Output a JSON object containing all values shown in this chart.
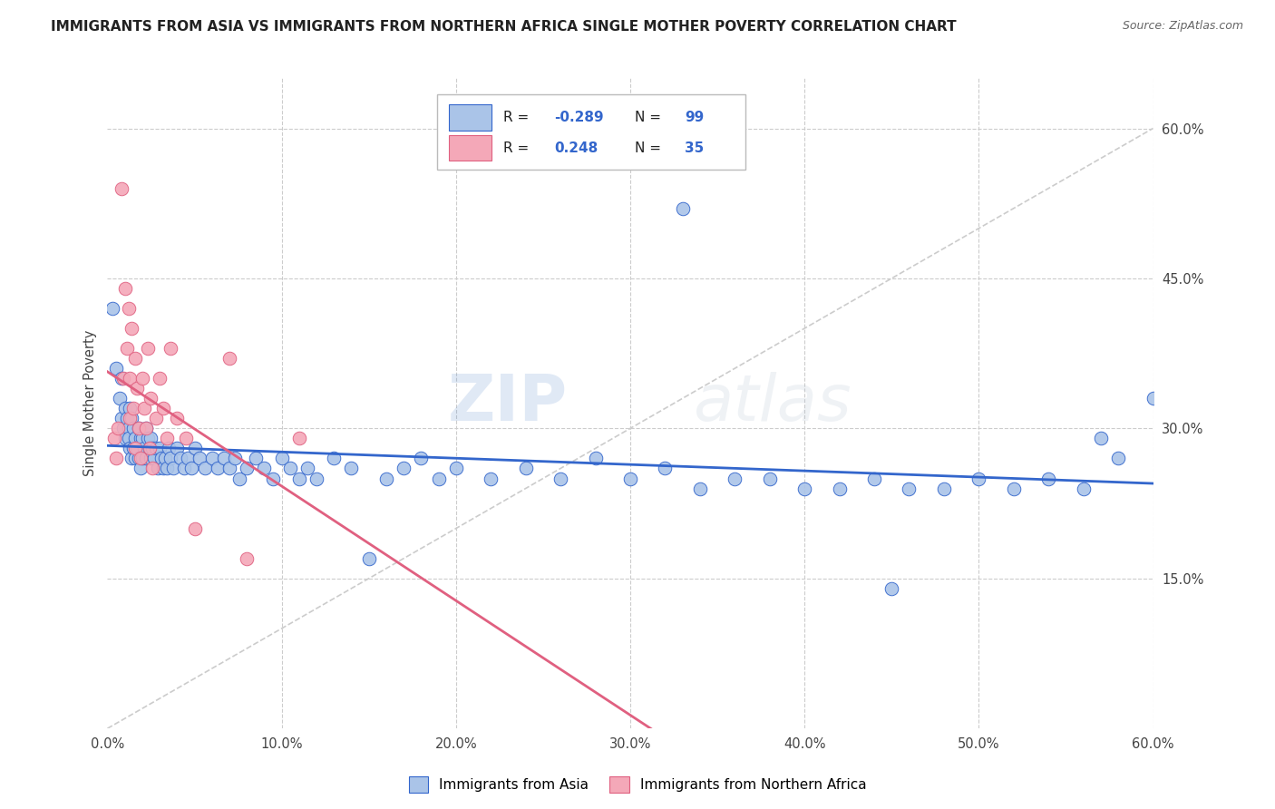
{
  "title": "IMMIGRANTS FROM ASIA VS IMMIGRANTS FROM NORTHERN AFRICA SINGLE MOTHER POVERTY CORRELATION CHART",
  "source": "Source: ZipAtlas.com",
  "ylabel_left": "Single Mother Poverty",
  "legend_label1": "Immigrants from Asia",
  "legend_label2": "Immigrants from Northern Africa",
  "R1": -0.289,
  "N1": 99,
  "R2": 0.248,
  "N2": 35,
  "color_asia": "#aac4e8",
  "color_africa": "#f4a8b8",
  "color_line_asia": "#3366cc",
  "color_line_africa": "#e06080",
  "color_diag": "#cccccc",
  "watermark_zip": "ZIP",
  "watermark_atlas": "atlas",
  "xlim": [
    0.0,
    0.6
  ],
  "ylim": [
    0.0,
    0.65
  ],
  "asia_x": [
    0.003,
    0.005,
    0.007,
    0.008,
    0.008,
    0.009,
    0.01,
    0.01,
    0.011,
    0.012,
    0.012,
    0.013,
    0.013,
    0.014,
    0.014,
    0.015,
    0.015,
    0.016,
    0.016,
    0.017,
    0.018,
    0.018,
    0.019,
    0.019,
    0.02,
    0.02,
    0.021,
    0.022,
    0.022,
    0.023,
    0.024,
    0.025,
    0.025,
    0.026,
    0.027,
    0.028,
    0.029,
    0.03,
    0.031,
    0.032,
    0.033,
    0.034,
    0.035,
    0.036,
    0.038,
    0.04,
    0.042,
    0.044,
    0.046,
    0.048,
    0.05,
    0.053,
    0.056,
    0.06,
    0.063,
    0.067,
    0.07,
    0.073,
    0.076,
    0.08,
    0.085,
    0.09,
    0.095,
    0.1,
    0.105,
    0.11,
    0.115,
    0.12,
    0.13,
    0.14,
    0.15,
    0.16,
    0.17,
    0.18,
    0.19,
    0.2,
    0.22,
    0.24,
    0.26,
    0.28,
    0.3,
    0.32,
    0.34,
    0.36,
    0.38,
    0.4,
    0.42,
    0.44,
    0.46,
    0.48,
    0.5,
    0.52,
    0.54,
    0.56,
    0.58,
    0.6,
    0.33,
    0.45,
    0.57
  ],
  "asia_y": [
    0.42,
    0.36,
    0.33,
    0.31,
    0.35,
    0.3,
    0.32,
    0.29,
    0.31,
    0.3,
    0.29,
    0.32,
    0.28,
    0.31,
    0.27,
    0.3,
    0.28,
    0.29,
    0.27,
    0.28,
    0.3,
    0.27,
    0.29,
    0.26,
    0.29,
    0.27,
    0.28,
    0.3,
    0.27,
    0.29,
    0.28,
    0.29,
    0.27,
    0.28,
    0.27,
    0.28,
    0.26,
    0.28,
    0.27,
    0.26,
    0.27,
    0.26,
    0.28,
    0.27,
    0.26,
    0.28,
    0.27,
    0.26,
    0.27,
    0.26,
    0.28,
    0.27,
    0.26,
    0.27,
    0.26,
    0.27,
    0.26,
    0.27,
    0.25,
    0.26,
    0.27,
    0.26,
    0.25,
    0.27,
    0.26,
    0.25,
    0.26,
    0.25,
    0.27,
    0.26,
    0.17,
    0.25,
    0.26,
    0.27,
    0.25,
    0.26,
    0.25,
    0.26,
    0.25,
    0.27,
    0.25,
    0.26,
    0.24,
    0.25,
    0.25,
    0.24,
    0.24,
    0.25,
    0.24,
    0.24,
    0.25,
    0.24,
    0.25,
    0.24,
    0.27,
    0.33,
    0.52,
    0.14,
    0.29
  ],
  "africa_x": [
    0.004,
    0.005,
    0.006,
    0.008,
    0.009,
    0.01,
    0.011,
    0.012,
    0.013,
    0.013,
    0.014,
    0.015,
    0.016,
    0.016,
    0.017,
    0.018,
    0.019,
    0.02,
    0.021,
    0.022,
    0.023,
    0.024,
    0.025,
    0.026,
    0.028,
    0.03,
    0.032,
    0.034,
    0.036,
    0.04,
    0.045,
    0.05,
    0.07,
    0.08,
    0.11
  ],
  "africa_y": [
    0.29,
    0.27,
    0.3,
    0.54,
    0.35,
    0.44,
    0.38,
    0.42,
    0.35,
    0.31,
    0.4,
    0.32,
    0.37,
    0.28,
    0.34,
    0.3,
    0.27,
    0.35,
    0.32,
    0.3,
    0.38,
    0.28,
    0.33,
    0.26,
    0.31,
    0.35,
    0.32,
    0.29,
    0.38,
    0.31,
    0.29,
    0.2,
    0.37,
    0.17,
    0.29
  ]
}
